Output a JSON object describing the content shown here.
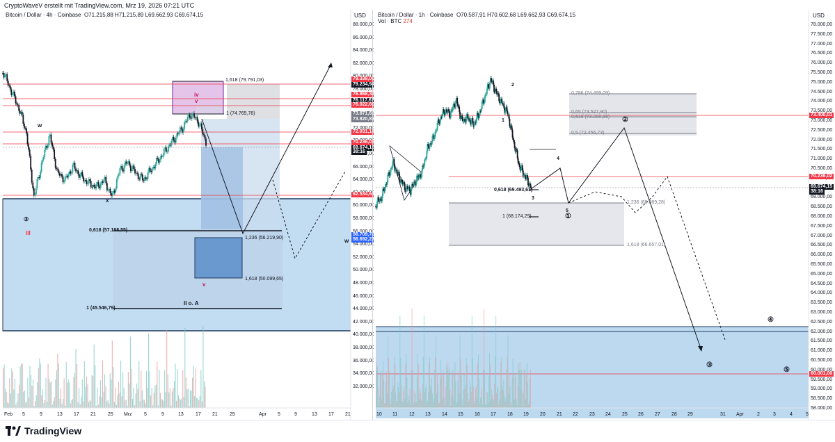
{
  "credit": "CryptoWaveV erstellt mit TradingView.com, Mrz 19, 2026 07:21 UTC",
  "brand": "TradingView",
  "left": {
    "symbol": "Bitcoin / Dollar · 4h · Coinbase",
    "ohlc": "O71.215,88  H71.215,89  L69.662,93  C69.674,15",
    "currency": "USD",
    "price_axis": [
      "88.000,00",
      "86.000,00",
      "84.000,00",
      "82.000,00",
      "80.000,00",
      "78.000,00",
      "76.000,00",
      "74.000,00",
      "72.000,00",
      "70.000,00",
      "68.000,00",
      "66.000,00",
      "64.000,00",
      "62.000,00",
      "60.000,00",
      "58.000,00",
      "56.000,00",
      "54.000,00",
      "52.000,00",
      "50.000,00",
      "48.000,00",
      "46.000,00",
      "44.000,00",
      "42.000,00",
      "40.000,00",
      "38.000,00",
      "36.000,00",
      "34.000,00",
      "32.000,00"
    ],
    "time_axis": [
      "Feb",
      "5",
      "9",
      "13",
      "17",
      "21",
      "25",
      "Mrz",
      "5",
      "9",
      "13",
      "17",
      "21",
      "25",
      "Apr",
      "5",
      "9",
      "13",
      "17",
      "21"
    ],
    "tags": [
      {
        "text": "79.339,00",
        "color": "#f23645"
      },
      {
        "text": "79.234,94",
        "color": "#131722"
      },
      {
        "text": "76.868,38",
        "color": "#f23645"
      },
      {
        "text": "76.117,67",
        "color": "#131722"
      },
      {
        "text": "76.022,60",
        "color": "#f23645"
      },
      {
        "text": "73.871,69",
        "color": "#787b86"
      },
      {
        "text": "73.820,82",
        "color": "#787b86"
      },
      {
        "text": "72.031,14",
        "color": "#f23645"
      },
      {
        "text": "70.236,02",
        "color": "#f23645"
      },
      {
        "text": "69.674,15",
        "color": "#131722"
      },
      {
        "text": "38:16",
        "color": "#131722"
      },
      {
        "text": "62.534,61",
        "color": "#f23645"
      },
      {
        "text": "56.709,78",
        "color": "#2962ff"
      },
      {
        "text": "56.692,27",
        "color": "#2962ff"
      }
    ],
    "fib_labels": [
      "1,618 (79.791,03)",
      "1 (74.765,78)",
      "0,618 (57.188,55)",
      "1,236 (56.219,90)",
      "1,618 (50.099,65)",
      "1 (45.546,79)"
    ],
    "wave_labels": [
      "w",
      "x",
      "iv",
      "v",
      "③",
      "III",
      "v",
      "II o. A",
      "w"
    ]
  },
  "right": {
    "symbol": "Bitcoin / Dollar · 1h · Coinbase",
    "ohlc": "O70.587,91  H70.602,68  L69.662,93  C69.674,15",
    "vol_label": "Vol · BTC",
    "vol_value": "274",
    "currency": "USD",
    "price_axis": [
      "78.000,00",
      "77.500,00",
      "77.000,00",
      "76.500,00",
      "76.000,00",
      "75.500,00",
      "75.000,00",
      "74.500,00",
      "74.000,00",
      "73.500,00",
      "73.000,00",
      "72.500,00",
      "72.000,00",
      "71.500,00",
      "71.000,00",
      "70.500,00",
      "70.000,00",
      "69.500,00",
      "69.000,00",
      "68.500,00",
      "68.000,00",
      "67.500,00",
      "67.000,00",
      "66.500,00",
      "66.000,00",
      "65.500,00",
      "65.000,00",
      "64.500,00",
      "64.000,00",
      "63.500,00",
      "63.000,00",
      "62.500,00",
      "62.000,00",
      "61.500,00",
      "61.000,00",
      "60.500,00",
      "60.000,00",
      "59.500,00",
      "59.000,00",
      "58.500,00",
      "58.000,00"
    ],
    "time_axis": [
      "10",
      "11",
      "12",
      "13",
      "14",
      "15",
      "16",
      "17",
      "18",
      "19",
      "20",
      "21",
      "22",
      "23",
      "24",
      "25",
      "26",
      "27",
      "28",
      "29",
      "31",
      "Apr",
      "2",
      "3",
      "4",
      "5"
    ],
    "tags": [
      {
        "text": "73.400,01",
        "color": "#f23645"
      },
      {
        "text": "70.236,02",
        "color": "#f23645"
      },
      {
        "text": "69.674,15",
        "color": "#131722"
      },
      {
        "text": "38:16",
        "color": "#131722"
      },
      {
        "text": "60.001,00",
        "color": "#f23645"
      }
    ],
    "fib_labels": [
      "0,786 (74.499,09)",
      "0,65 (73.527,90)",
      "0,618 (73.299,38)",
      "0,5 (72.456,73)",
      "0,618 (69.493,61)",
      "1,236 (68.869,28)",
      "1 (68.174,29)",
      "1,618 (66.657,01)"
    ],
    "wave_labels": [
      "2",
      "1",
      "4",
      "3",
      "5",
      "①",
      "②",
      "③",
      "④",
      "⑤"
    ]
  }
}
